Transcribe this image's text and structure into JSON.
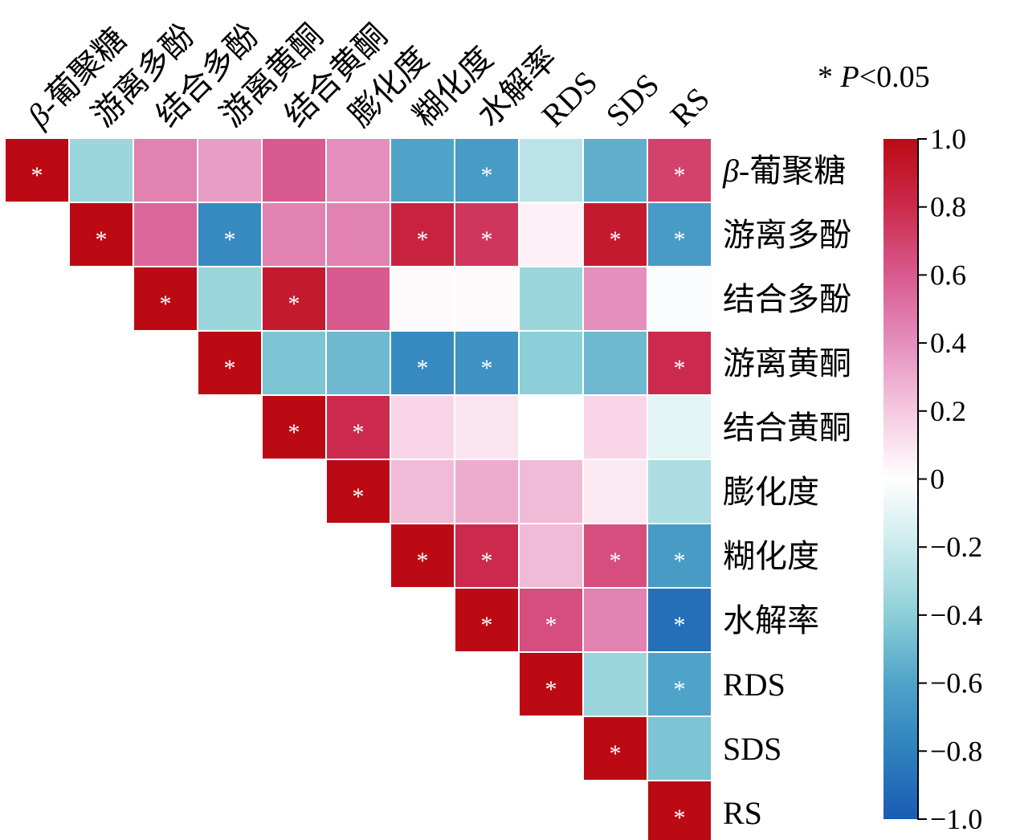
{
  "chart_data": {
    "type": "heatmap",
    "title": "",
    "variables": [
      {
        "pre": "β",
        "post": "-葡聚糖"
      },
      {
        "pre": "",
        "post": "游离多酚"
      },
      {
        "pre": "",
        "post": "结合多酚"
      },
      {
        "pre": "",
        "post": "游离黄酮"
      },
      {
        "pre": "",
        "post": "结合黄酮"
      },
      {
        "pre": "",
        "post": "膨化度"
      },
      {
        "pre": "",
        "post": "糊化度"
      },
      {
        "pre": "",
        "post": "水解率"
      },
      {
        "pre": "",
        "post": "RDS"
      },
      {
        "pre": "",
        "post": "SDS"
      },
      {
        "pre": "",
        "post": "RS"
      }
    ],
    "matrix": [
      [
        1.0,
        -0.35,
        0.45,
        0.35,
        0.6,
        0.4,
        -0.6,
        -0.65,
        -0.25,
        -0.55,
        0.7
      ],
      [
        null,
        1.0,
        0.55,
        -0.75,
        0.45,
        0.45,
        0.85,
        0.75,
        0.05,
        0.9,
        -0.65
      ],
      [
        null,
        null,
        1.0,
        -0.35,
        0.9,
        0.6,
        0.02,
        0.02,
        -0.35,
        0.4,
        -0.02
      ],
      [
        null,
        null,
        null,
        1.0,
        -0.45,
        -0.5,
        -0.75,
        -0.7,
        -0.4,
        -0.5,
        0.8
      ],
      [
        null,
        null,
        null,
        null,
        1.0,
        0.8,
        0.15,
        0.1,
        0.0,
        0.15,
        -0.1
      ],
      [
        null,
        null,
        null,
        null,
        null,
        1.0,
        0.25,
        0.3,
        0.25,
        0.08,
        -0.3
      ],
      [
        null,
        null,
        null,
        null,
        null,
        null,
        1.0,
        0.8,
        0.25,
        0.65,
        -0.65
      ],
      [
        null,
        null,
        null,
        null,
        null,
        null,
        null,
        1.0,
        0.65,
        0.45,
        -0.9
      ],
      [
        null,
        null,
        null,
        null,
        null,
        null,
        null,
        null,
        1.0,
        -0.35,
        -0.6
      ],
      [
        null,
        null,
        null,
        null,
        null,
        null,
        null,
        null,
        null,
        1.0,
        -0.45
      ],
      [
        null,
        null,
        null,
        null,
        null,
        null,
        null,
        null,
        null,
        null,
        1.0
      ]
    ],
    "significant": [
      [
        true,
        false,
        false,
        false,
        false,
        false,
        false,
        true,
        false,
        false,
        true
      ],
      [
        false,
        true,
        false,
        true,
        false,
        false,
        true,
        true,
        false,
        true,
        true
      ],
      [
        false,
        false,
        true,
        false,
        true,
        false,
        false,
        false,
        false,
        false,
        false
      ],
      [
        false,
        false,
        false,
        true,
        false,
        false,
        true,
        true,
        false,
        false,
        true
      ],
      [
        false,
        false,
        false,
        false,
        true,
        true,
        false,
        false,
        false,
        false,
        false
      ],
      [
        false,
        false,
        false,
        false,
        false,
        true,
        false,
        false,
        false,
        false,
        false
      ],
      [
        false,
        false,
        false,
        false,
        false,
        false,
        true,
        true,
        false,
        true,
        true
      ],
      [
        false,
        false,
        false,
        false,
        false,
        false,
        false,
        true,
        true,
        false,
        true
      ],
      [
        false,
        false,
        false,
        false,
        false,
        false,
        false,
        false,
        true,
        false,
        true
      ],
      [
        false,
        false,
        false,
        false,
        false,
        false,
        false,
        false,
        false,
        true,
        false
      ],
      [
        false,
        false,
        false,
        false,
        false,
        false,
        false,
        false,
        false,
        false,
        true
      ]
    ],
    "significance_marker": "*",
    "legend": {
      "pre": "* ",
      "p": "P",
      "post": "<0.05"
    },
    "colorbar": {
      "range": [
        -1.0,
        1.0
      ],
      "ticks": [
        "1.0",
        "0.8",
        "0.6",
        "0.4",
        "0.2",
        "0",
        "−0.2",
        "−0.4",
        "−0.6",
        "−0.8",
        "−1.0"
      ],
      "tick_values": [
        1.0,
        0.8,
        0.6,
        0.4,
        0.2,
        0.0,
        -0.2,
        -0.4,
        -0.6,
        -0.8,
        -1.0
      ],
      "color_stops": [
        {
          "v": -1.0,
          "c": "#1a5cb4"
        },
        {
          "v": -0.8,
          "c": "#2f81bd"
        },
        {
          "v": -0.6,
          "c": "#4fa3c8"
        },
        {
          "v": -0.4,
          "c": "#8ccfd8"
        },
        {
          "v": -0.2,
          "c": "#c9eaec"
        },
        {
          "v": 0.0,
          "c": "#ffffff"
        },
        {
          "v": 0.2,
          "c": "#f5c8df"
        },
        {
          "v": 0.4,
          "c": "#e48fbd"
        },
        {
          "v": 0.6,
          "c": "#d85a8e"
        },
        {
          "v": 0.8,
          "c": "#cc2a4c"
        },
        {
          "v": 1.0,
          "c": "#bb0a14"
        }
      ]
    }
  }
}
